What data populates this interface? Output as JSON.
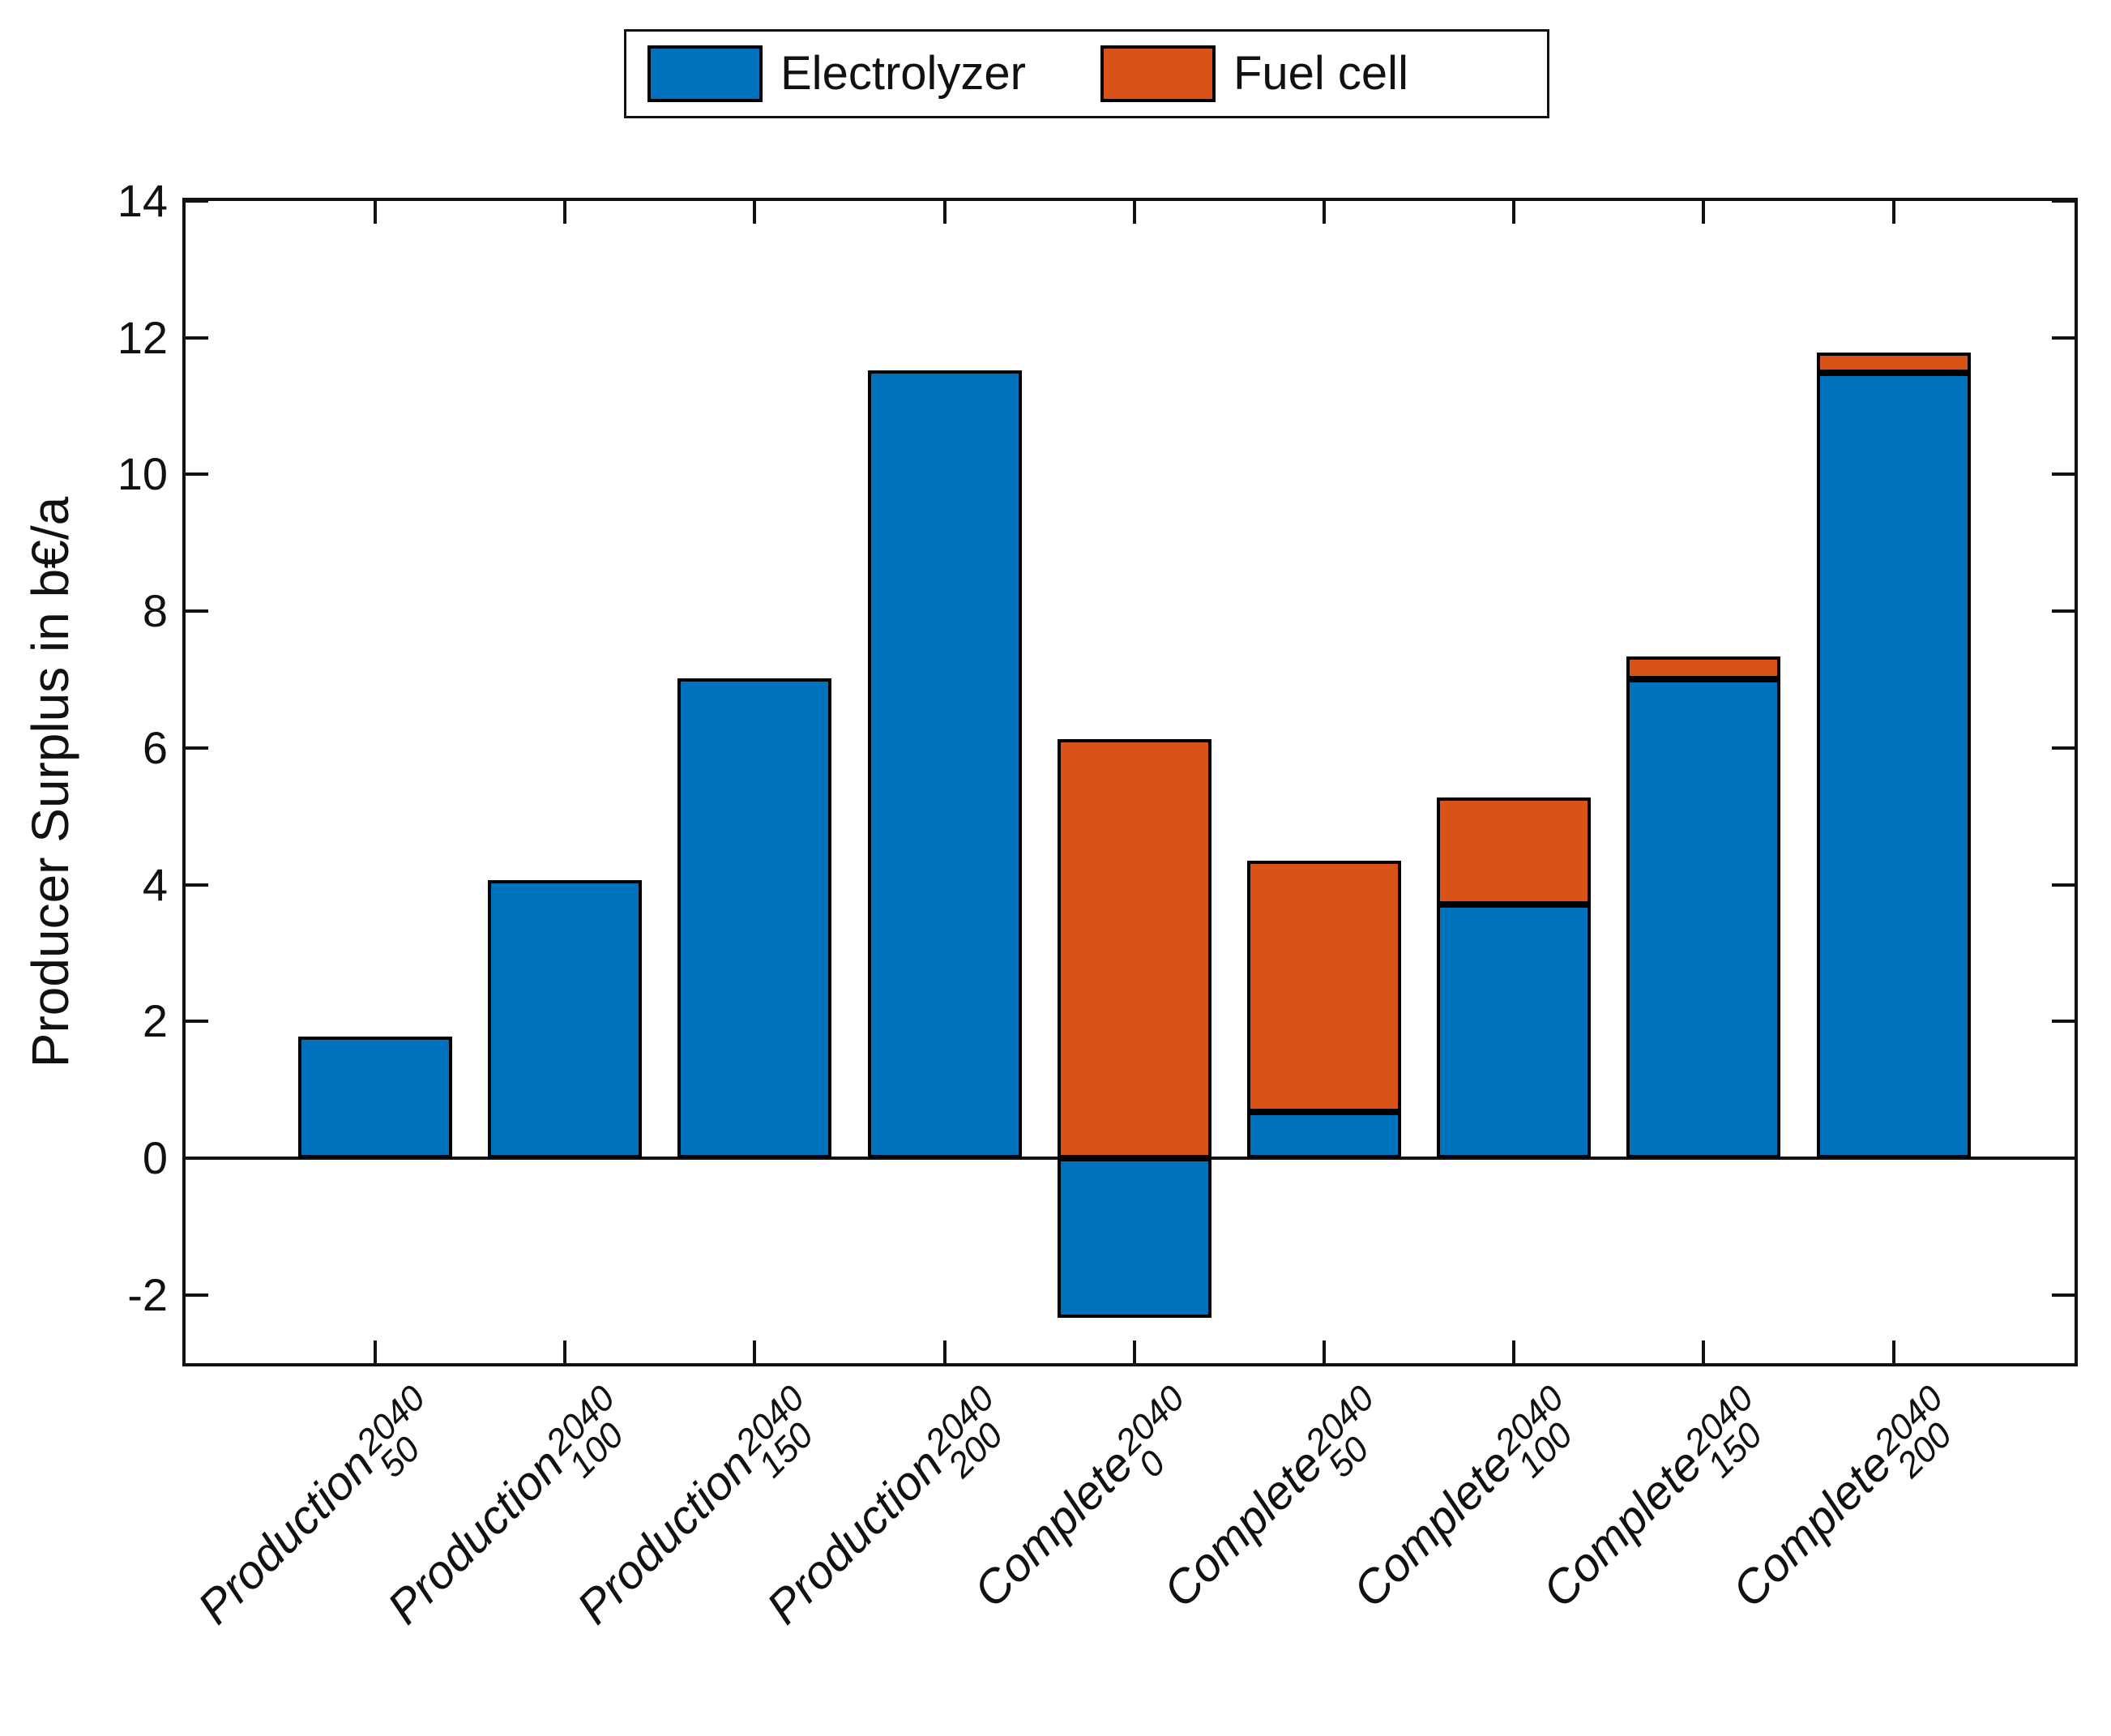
{
  "colors": {
    "electrolyzer_blue": "#0072BD",
    "fuel_cell_orange": "#D95319",
    "axis": "#111111",
    "bar_edge": "#000000",
    "background": "#ffffff"
  },
  "legend": {
    "items": [
      {
        "label": "Electrolyzer",
        "color": "#0072BD"
      },
      {
        "label": "Fuel cell",
        "color": "#D95319"
      }
    ],
    "position": "top-center"
  },
  "chart_data": {
    "type": "bar",
    "stacked": true,
    "title": "",
    "xlabel": "",
    "ylabel": "Producer Surplus in b€/a",
    "ylim": [
      -3,
      14
    ],
    "yticks": [
      -2,
      0,
      2,
      4,
      6,
      8,
      10,
      12,
      14
    ],
    "grid": false,
    "legend_position": "top",
    "categories": [
      {
        "name": "Production",
        "sup": "2040",
        "sub": "50"
      },
      {
        "name": "Production",
        "sup": "2040",
        "sub": "100"
      },
      {
        "name": "Production",
        "sup": "2040",
        "sub": "150"
      },
      {
        "name": "Production",
        "sup": "2040",
        "sub": "200"
      },
      {
        "name": "Complete",
        "sup": "2040",
        "sub": "0"
      },
      {
        "name": "Complete",
        "sup": "2040",
        "sub": "50"
      },
      {
        "name": "Complete",
        "sup": "2040",
        "sub": "100"
      },
      {
        "name": "Complete",
        "sup": "2040",
        "sub": "150"
      },
      {
        "name": "Complete",
        "sup": "2040",
        "sub": "200"
      }
    ],
    "series": [
      {
        "name": "Electrolyzer",
        "color": "#0072BD",
        "values": [
          1.78,
          4.07,
          7.02,
          11.52,
          -2.34,
          0.68,
          3.71,
          7.0,
          11.49
        ]
      },
      {
        "name": "Fuel cell",
        "color": "#D95319",
        "values": [
          0,
          0,
          0,
          0,
          6.13,
          3.67,
          1.57,
          0.34,
          0.29
        ]
      }
    ]
  }
}
